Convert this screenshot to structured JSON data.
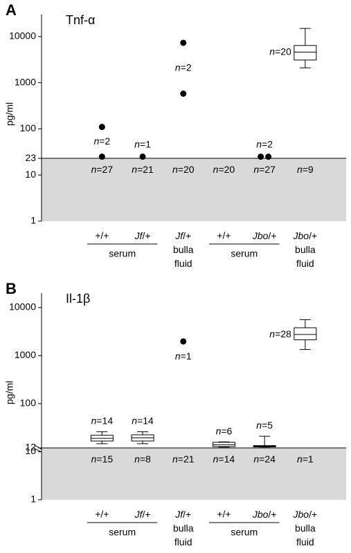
{
  "chart_data": [
    {
      "type": "box-dot",
      "panel": "A",
      "title": "Tnf-α",
      "ylabel": "pg/ml",
      "log_scale": true,
      "ylim": [
        1,
        30000
      ],
      "yticks": [
        1,
        10,
        23,
        100,
        1000,
        10000
      ],
      "threshold": 23,
      "groups": [
        {
          "label": "serum",
          "categories": [
            {
              "genotype": "+/+",
              "points": [
                110,
                25
              ],
              "n_label": "n=2",
              "n_below_label": "n=27"
            },
            {
              "genotype": "Jf/+",
              "points": [
                25
              ],
              "n_label": "n=1",
              "n_below_label": "n=21"
            }
          ]
        },
        {
          "label": "bulla fluid",
          "categories": [
            {
              "genotype": "Jf/+",
              "points": [
                7300,
                580
              ],
              "n_label": "n=2",
              "n_below_label": "n=20"
            }
          ]
        },
        {
          "label": "serum",
          "categories": [
            {
              "genotype": "+/+",
              "n_below_label": "n=20"
            },
            {
              "genotype": "Jbo/+",
              "points": [
                25,
                25
              ],
              "n_label": "n=2",
              "n_below_label": "n=27"
            }
          ]
        },
        {
          "label": "bulla fluid",
          "categories": [
            {
              "genotype": "Jbo/+",
              "box": {
                "whislo": 2100,
                "q1": 3100,
                "med": 4600,
                "q3": 6400,
                "whishi": 15000
              },
              "n_label": "n=20",
              "n_below_label": "n=9"
            }
          ]
        }
      ]
    },
    {
      "type": "box-dot",
      "panel": "B",
      "title": "Il-1β",
      "ylabel": "pg/ml",
      "log_scale": true,
      "ylim": [
        1,
        20000
      ],
      "yticks": [
        1,
        10,
        12,
        100,
        1000,
        10000
      ],
      "threshold": 12,
      "groups": [
        {
          "label": "serum",
          "categories": [
            {
              "genotype": "+/+",
              "box": {
                "whislo": 14.7,
                "q1": 16.7,
                "med": 19,
                "q3": 22,
                "whishi": 26
              },
              "n_label": "n=14",
              "n_below_label": "n=15"
            },
            {
              "genotype": "Jf/+",
              "box": {
                "whislo": 14.7,
                "q1": 16.7,
                "med": 19.5,
                "q3": 22.5,
                "whishi": 26
              },
              "n_label": "n=14",
              "n_below_label": "n=8"
            }
          ]
        },
        {
          "label": "bulla fluid",
          "categories": [
            {
              "genotype": "Jf/+",
              "points": [
                1970
              ],
              "n_label": "n=1",
              "n_below_label": "n=21"
            }
          ]
        },
        {
          "label": "serum",
          "categories": [
            {
              "genotype": "+/+",
              "box": {
                "whislo": 12.5,
                "q1": 12.8,
                "med": 14,
                "q3": 15.7,
                "whishi": 16
              },
              "n_label": "n=6",
              "n_below_label": "n=14"
            },
            {
              "genotype": "Jbo/+",
              "box": {
                "whislo": 12.5,
                "q1": 12.6,
                "med": 13,
                "q3": 13.4,
                "whishi": 21
              },
              "n_label": "n=5",
              "n_below_label": "n=24"
            }
          ]
        },
        {
          "label": "bulla fluid",
          "categories": [
            {
              "genotype": "Jbo/+",
              "box": {
                "whislo": 1340,
                "q1": 2130,
                "med": 2750,
                "q3": 3800,
                "whishi": 5600
              },
              "n_label": "n=28",
              "n_below_label": "n=1"
            }
          ]
        }
      ]
    }
  ]
}
